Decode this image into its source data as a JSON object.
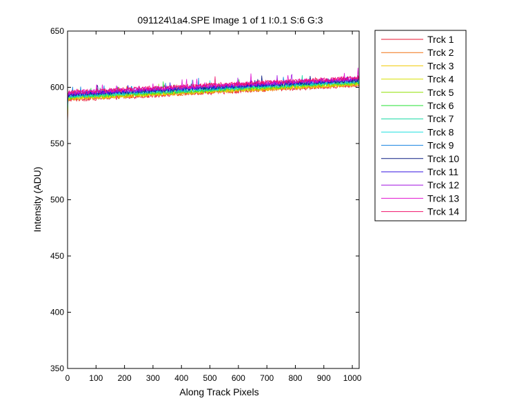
{
  "chart_data": {
    "type": "line",
    "title": "091124\\1a4.SPE  Image 1 of 1  I:0.1  S:6  G:3",
    "xlabel": "Along Track Pixels",
    "ylabel": "Intensity (ADU)",
    "xlim": [
      0,
      1024
    ],
    "ylim": [
      350,
      650
    ],
    "xticks": [
      0,
      100,
      200,
      300,
      400,
      500,
      600,
      700,
      800,
      900,
      1000
    ],
    "yticks": [
      350,
      400,
      450,
      500,
      550,
      600,
      650
    ],
    "grid": false,
    "legend_position": "outside-right",
    "series": [
      {
        "name": "Trck 1",
        "color": "#e8102e",
        "x": [
          0,
          1024
        ],
        "values": [
          589,
          602
        ]
      },
      {
        "name": "Trck 2",
        "color": "#f07010",
        "x": [
          0,
          1024
        ],
        "values": [
          589.5,
          602.5
        ]
      },
      {
        "name": "Trck 3",
        "color": "#f0c800",
        "x": [
          0,
          1024
        ],
        "values": [
          590,
          603
        ]
      },
      {
        "name": "Trck 4",
        "color": "#d8e000",
        "x": [
          0,
          1024
        ],
        "values": [
          590.5,
          603.5
        ]
      },
      {
        "name": "Trck 5",
        "color": "#90e000",
        "x": [
          0,
          1024
        ],
        "values": [
          591,
          604
        ]
      },
      {
        "name": "Trck 6",
        "color": "#20e030",
        "x": [
          0,
          1024
        ],
        "values": [
          591.5,
          604.5
        ]
      },
      {
        "name": "Trck 7",
        "color": "#10d8a0",
        "x": [
          0,
          1024
        ],
        "values": [
          592,
          605
        ]
      },
      {
        "name": "Trck 8",
        "color": "#20e0e0",
        "x": [
          0,
          1024
        ],
        "values": [
          592.5,
          605.5
        ]
      },
      {
        "name": "Trck 9",
        "color": "#1080e0",
        "x": [
          0,
          1024
        ],
        "values": [
          593,
          606
        ]
      },
      {
        "name": "Trck 10",
        "color": "#0a1a80",
        "x": [
          0,
          1024
        ],
        "values": [
          593.5,
          606.5
        ]
      },
      {
        "name": "Trck 11",
        "color": "#3010e0",
        "x": [
          0,
          1024
        ],
        "values": [
          594,
          607
        ]
      },
      {
        "name": "Trck 12",
        "color": "#a010e0",
        "x": [
          0,
          1024
        ],
        "values": [
          594.5,
          607.5
        ]
      },
      {
        "name": "Trck 13",
        "color": "#e010d0",
        "x": [
          0,
          1024
        ],
        "values": [
          595,
          608
        ]
      },
      {
        "name": "Trck 14",
        "color": "#f0106a",
        "x": [
          0,
          1024
        ],
        "values": [
          595.5,
          608.5
        ]
      }
    ]
  }
}
